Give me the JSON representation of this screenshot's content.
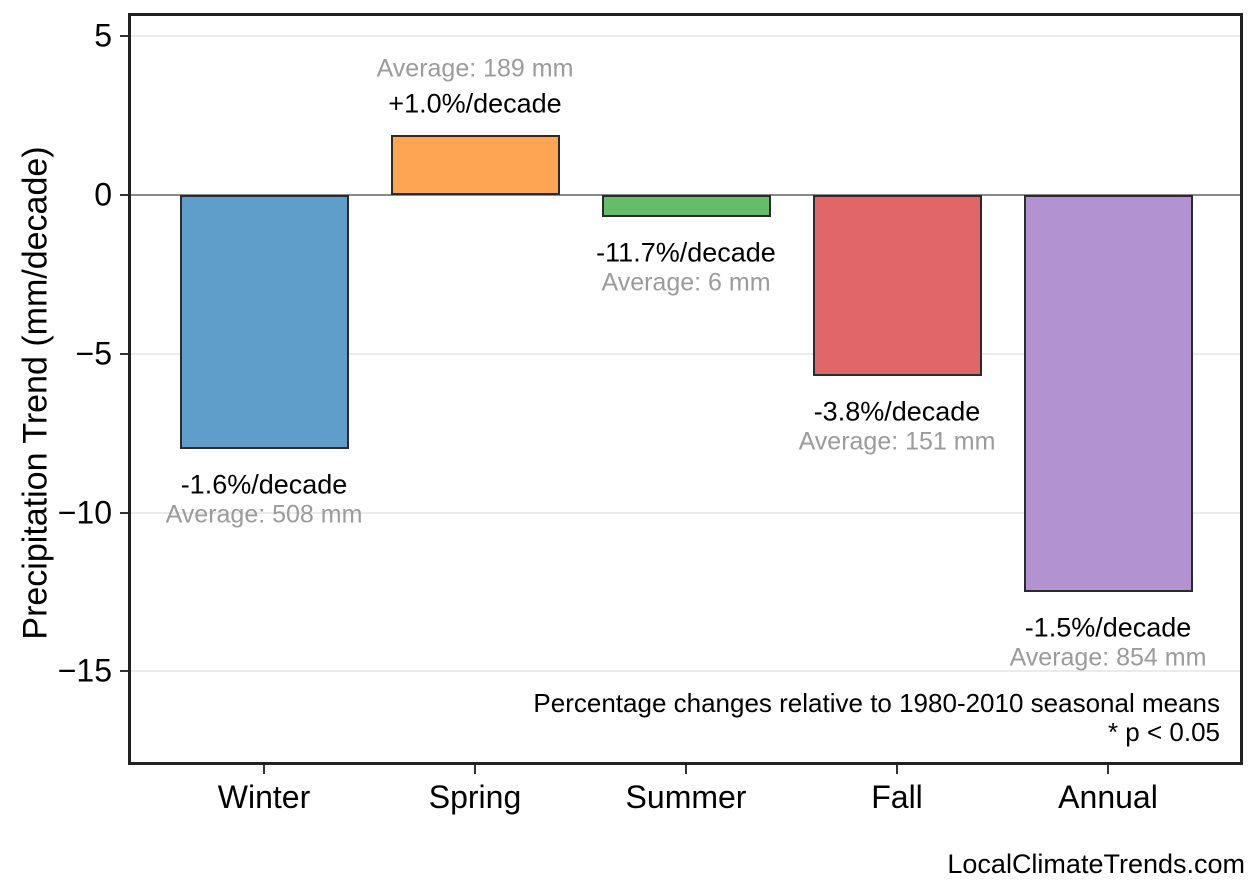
{
  "watermark": "LocalClimateTrends.com",
  "chart_data": {
    "type": "bar",
    "title": "",
    "xlabel": "",
    "ylabel": "Precipitation Trend (mm/decade)",
    "categories": [
      "Winter",
      "Spring",
      "Summer",
      "Fall",
      "Annual"
    ],
    "values": [
      -8.0,
      1.9,
      -0.7,
      -5.7,
      -12.5
    ],
    "pct_change_per_decade": [
      -1.6,
      1.0,
      -11.7,
      -3.8,
      -1.5
    ],
    "average_mm": [
      508,
      189,
      6,
      151,
      854
    ],
    "bar_colors": [
      "#5f9eca",
      "#fda552",
      "#67bc6c",
      "#e1666a",
      "#b292d0"
    ],
    "bar_edge_color": "#2b2b2b",
    "annotations": [
      {
        "trend": "-1.6%/decade",
        "average": "Average: 508 mm"
      },
      {
        "trend": "+1.0%/decade",
        "average": "Average: 189 mm"
      },
      {
        "trend": "-11.7%/decade",
        "average": "Average: 6 mm"
      },
      {
        "trend": "-3.8%/decade",
        "average": "Average: 151 mm"
      },
      {
        "trend": "-1.5%/decade",
        "average": "Average: 854 mm"
      }
    ],
    "y_ticks": [
      5,
      0,
      -5,
      -10,
      -15
    ],
    "y_tick_labels": [
      "5",
      "0",
      "−5",
      "−10",
      "−15"
    ],
    "ylim": [
      -18,
      5.7
    ],
    "grid": "horizontal-major",
    "legend": "none",
    "gridline_color": "#ebebeb",
    "zero_line_color": "#8a8a8a",
    "text_color": "#000000",
    "muted_text_color": "#9b9b9b",
    "footnote_line1": "Percentage changes relative to 1980-2010 seasonal means",
    "footnote_line2": "* p < 0.05"
  }
}
